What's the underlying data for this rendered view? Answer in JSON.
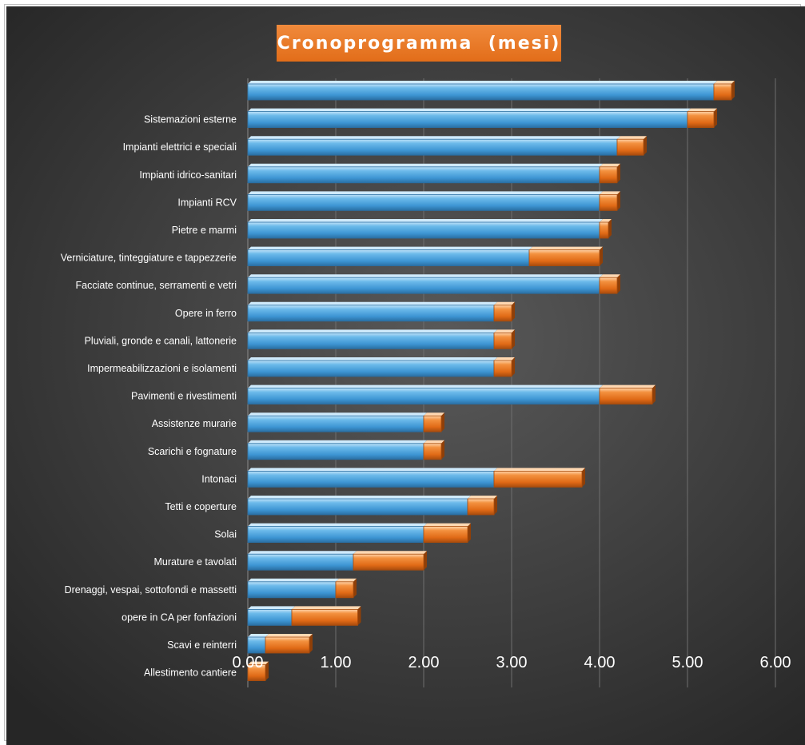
{
  "chart_data": {
    "type": "bar",
    "orientation": "horizontal",
    "stacked": true,
    "title": "Cronoprogramma  (mesi)",
    "categories": [
      "",
      "Sistemazioni esterne",
      "Impianti elettrici e speciali",
      "Impianti idrico-sanitari",
      "Impianti RCV",
      "Pietre e marmi",
      "Verniciature, tinteggiature e tappezzerie",
      "Facciate continue, serramenti e vetri",
      "Opere in ferro",
      "Pluviali, gronde e canali, lattonerie",
      "Impermeabilizzazioni e isolamenti",
      "Pavimenti e rivestimenti",
      "Assistenze murarie",
      "Scarichi e fognature",
      "Intonaci",
      "Tetti e coperture",
      "Solai",
      "Murature e tavolati",
      "Drenaggi, vespai, sottofondi e massetti",
      "opere in CA per fonfazioni",
      "Scavi e reinterri",
      "Allestimento cantiere"
    ],
    "series": [
      {
        "values": [
          5.3,
          5.0,
          4.2,
          4.0,
          4.0,
          4.0,
          3.2,
          4.0,
          2.8,
          2.8,
          2.8,
          4.0,
          2.0,
          2.0,
          2.8,
          2.5,
          2.0,
          1.2,
          1.0,
          0.5,
          0.2,
          0.0
        ],
        "color": "#4aa3df"
      },
      {
        "values": [
          0.2,
          0.3,
          0.3,
          0.2,
          0.2,
          0.1,
          0.8,
          0.2,
          0.2,
          0.2,
          0.2,
          0.6,
          0.2,
          0.2,
          1.0,
          0.3,
          0.5,
          0.8,
          0.2,
          0.75,
          0.5,
          0.2
        ],
        "color": "#e8711f"
      }
    ],
    "xlim": [
      0,
      6
    ],
    "xticks": [
      "0.00",
      "1.00",
      "2.00",
      "3.00",
      "4.00",
      "5.00",
      "6.00"
    ],
    "grid": true,
    "legend": "none"
  }
}
